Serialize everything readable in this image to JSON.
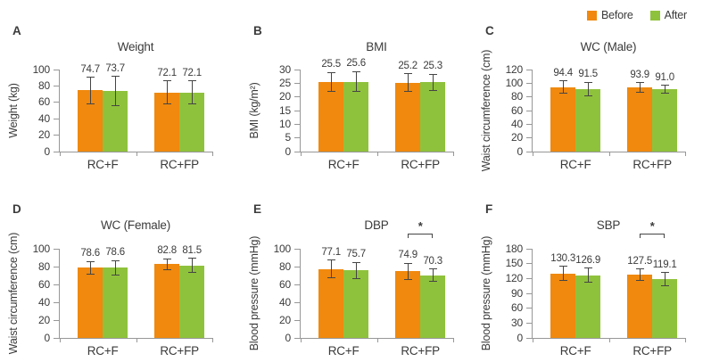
{
  "figure": {
    "legend": {
      "position": "top-right",
      "items": [
        {
          "label": "Before",
          "color": "#F0890E"
        },
        {
          "label": "After",
          "color": "#8FC23C"
        }
      ]
    },
    "colors": {
      "axis": "#979797",
      "error_bar": "#454545",
      "text": "#3b3b3b",
      "background": "#ffffff"
    }
  },
  "chart_data": [
    {
      "type": "bar",
      "panel": "A",
      "title": "Weight",
      "ylabel": "Weight (kg)",
      "ylim": [
        0,
        100
      ],
      "yticks": [
        0,
        20,
        40,
        60,
        80,
        100
      ],
      "categories": [
        "RC+F",
        "RC+FP"
      ],
      "series": [
        {
          "name": "Before",
          "values": [
            74.7,
            72.1
          ],
          "errors": [
            16,
            14
          ]
        },
        {
          "name": "After",
          "values": [
            73.7,
            72.1
          ],
          "errors": [
            18,
            14
          ]
        }
      ],
      "significance": null
    },
    {
      "type": "bar",
      "panel": "B",
      "title": "BMI",
      "ylabel": "BMI (kg/m²)",
      "ylim": [
        0,
        30
      ],
      "yticks": [
        0,
        5,
        10,
        15,
        20,
        25,
        30
      ],
      "categories": [
        "RC+F",
        "RC+FP"
      ],
      "series": [
        {
          "name": "Before",
          "values": [
            25.5,
            25.2
          ],
          "errors": [
            3.5,
            3.2
          ]
        },
        {
          "name": "After",
          "values": [
            25.6,
            25.3
          ],
          "errors": [
            3.7,
            3.0
          ]
        }
      ],
      "significance": null
    },
    {
      "type": "bar",
      "panel": "C",
      "title": "WC (Male)",
      "ylabel": "Waist circumference (cm)",
      "ylim": [
        0,
        120
      ],
      "yticks": [
        0,
        20,
        40,
        60,
        80,
        100,
        120
      ],
      "categories": [
        "RC+F",
        "RC+FP"
      ],
      "series": [
        {
          "name": "Before",
          "values": [
            94.4,
            93.9
          ],
          "errors": [
            9,
            7
          ]
        },
        {
          "name": "After",
          "values": [
            91.5,
            91.0
          ],
          "errors": [
            10,
            6
          ]
        }
      ],
      "significance": null
    },
    {
      "type": "bar",
      "panel": "D",
      "title": "WC (Female)",
      "ylabel": "Waist circumference (cm)",
      "ylim": [
        0,
        100
      ],
      "yticks": [
        0,
        20,
        40,
        60,
        80,
        100
      ],
      "categories": [
        "RC+F",
        "RC+FP"
      ],
      "series": [
        {
          "name": "Before",
          "values": [
            78.6,
            82.8
          ],
          "errors": [
            7,
            6
          ]
        },
        {
          "name": "After",
          "values": [
            78.6,
            81.5
          ],
          "errors": [
            8,
            8
          ]
        }
      ],
      "significance": null
    },
    {
      "type": "bar",
      "panel": "E",
      "title": "DBP",
      "ylabel": "Blood pressure (mmHg)",
      "ylim": [
        0,
        100
      ],
      "yticks": [
        0,
        20,
        40,
        60,
        80,
        100
      ],
      "categories": [
        "RC+F",
        "RC+FP"
      ],
      "series": [
        {
          "name": "Before",
          "values": [
            77.1,
            74.9
          ],
          "errors": [
            10,
            9
          ]
        },
        {
          "name": "After",
          "values": [
            75.7,
            70.3
          ],
          "errors": [
            9,
            7
          ]
        }
      ],
      "significance": {
        "group_index": 1,
        "label": "*"
      }
    },
    {
      "type": "bar",
      "panel": "F",
      "title": "SBP",
      "ylabel": "Blood pressure (mmHg)",
      "ylim": [
        0,
        180
      ],
      "yticks": [
        0,
        30,
        60,
        90,
        120,
        150,
        180
      ],
      "categories": [
        "RC+F",
        "RC+FP"
      ],
      "series": [
        {
          "name": "Before",
          "values": [
            130.3,
            127.5
          ],
          "errors": [
            14,
            12
          ]
        },
        {
          "name": "After",
          "values": [
            126.9,
            119.1
          ],
          "errors": [
            14,
            13
          ]
        }
      ],
      "significance": {
        "group_index": 1,
        "label": "*"
      }
    }
  ]
}
